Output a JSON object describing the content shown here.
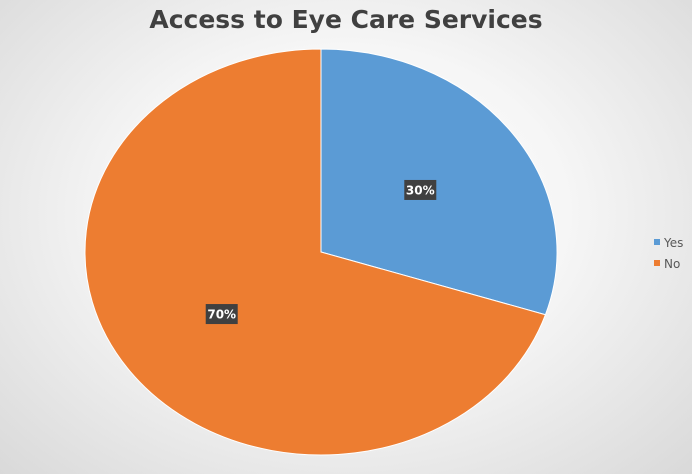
{
  "chart_data": {
    "type": "pie",
    "title": "Access to Eye Care Services",
    "categories": [
      "Yes",
      "No"
    ],
    "values": [
      30,
      70
    ],
    "data_labels": [
      "30%",
      "70%"
    ],
    "colors": [
      "#5B9BD5",
      "#ED7D31"
    ],
    "legend_position": "right"
  }
}
